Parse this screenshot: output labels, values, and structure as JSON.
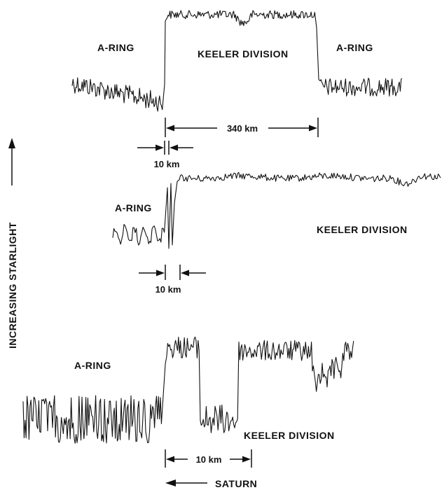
{
  "colors": {
    "ink": "#111111",
    "background": "#ffffff"
  },
  "chart_data": {
    "type": "line",
    "y_axis_label": "INCREASING STARLIGHT",
    "x_direction_label": "SATURN",
    "panels": [
      {
        "labels": {
          "left": "A-RING",
          "middle": "KEELER DIVISION",
          "right": "A-RING"
        },
        "dimensions": [
          "340 km",
          "10 km"
        ],
        "series": [
          {
            "segment": "A-RING (left)",
            "level": 0.3
          },
          {
            "segment": "KEELER DIVISION",
            "level": 0.93
          },
          {
            "segment": "A-RING (right)",
            "level": 0.3
          }
        ]
      },
      {
        "labels": {
          "left": "A-RING",
          "right": "KEELER DIVISION"
        },
        "dimensions": [
          "10 km"
        ],
        "series": [
          {
            "segment": "A-RING",
            "level": 0.15
          },
          {
            "segment": "KEELER DIVISION",
            "level": 0.9
          }
        ]
      },
      {
        "labels": {
          "left": "A-RING",
          "right": "KEELER DIVISION"
        },
        "dimensions": [
          "10 km"
        ],
        "series": [
          {
            "segment": "A-RING",
            "level": 0.2
          },
          {
            "segment": "KEELER DIVISION",
            "level": 0.75
          }
        ]
      }
    ]
  }
}
